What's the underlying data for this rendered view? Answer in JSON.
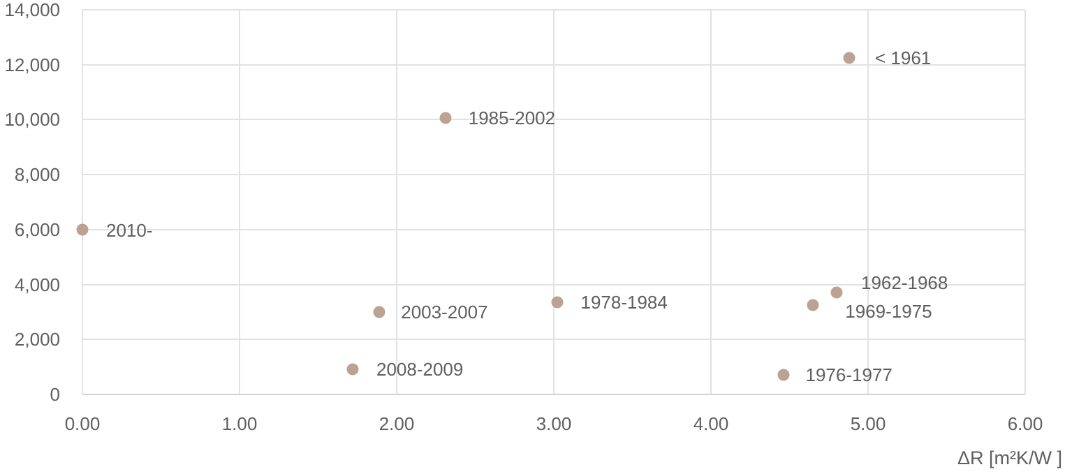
{
  "chart_data": {
    "type": "scatter",
    "title": "",
    "xlabel": "ΔR [m²K/W ]",
    "ylabel": "",
    "xlim": [
      0,
      6
    ],
    "ylim": [
      0,
      14000
    ],
    "grid": true,
    "legend": "none",
    "marker_color": "#bca292",
    "text_color": "#5f5f5f",
    "gridline_color": "#e2e2e2",
    "axis_line_color": "#d2d2d5",
    "x_ticks": [
      {
        "value": 0,
        "label": "0.00"
      },
      {
        "value": 1,
        "label": "1.00"
      },
      {
        "value": 2,
        "label": "2.00"
      },
      {
        "value": 3,
        "label": "3.00"
      },
      {
        "value": 4,
        "label": "4.00"
      },
      {
        "value": 5,
        "label": "5.00"
      },
      {
        "value": 6,
        "label": "6.00"
      }
    ],
    "y_ticks": [
      {
        "value": 0,
        "label": "0"
      },
      {
        "value": 2000,
        "label": "2,000"
      },
      {
        "value": 4000,
        "label": "4,000"
      },
      {
        "value": 6000,
        "label": "6,000"
      },
      {
        "value": 8000,
        "label": "8,000"
      },
      {
        "value": 10000,
        "label": "10,000"
      },
      {
        "value": 12000,
        "label": "12,000"
      },
      {
        "value": 14000,
        "label": "14,000"
      }
    ],
    "points": [
      {
        "label": "< 1961",
        "x": 4.88,
        "y": 12250,
        "label_offset": [
          37,
          0
        ]
      },
      {
        "label": "1985-2002",
        "x": 2.31,
        "y": 10050,
        "label_offset": [
          33,
          0
        ]
      },
      {
        "label": "2010-",
        "x": 0.0,
        "y": 6000,
        "label_offset": [
          34,
          1
        ]
      },
      {
        "label": "1962-1968",
        "x": 4.8,
        "y": 3700,
        "label_offset": [
          35,
          -14
        ]
      },
      {
        "label": "1969-1975",
        "x": 4.65,
        "y": 3250,
        "label_offset": [
          46,
          9
        ]
      },
      {
        "label": "1978-1984",
        "x": 3.02,
        "y": 3350,
        "label_offset": [
          34,
          0
        ]
      },
      {
        "label": "2003-2007",
        "x": 1.89,
        "y": 3000,
        "label_offset": [
          31,
          0
        ]
      },
      {
        "label": "2008-2009",
        "x": 1.72,
        "y": 925,
        "label_offset": [
          34,
          0
        ]
      },
      {
        "label": "1976-1977",
        "x": 4.46,
        "y": 700,
        "label_offset": [
          32,
          0
        ]
      }
    ]
  }
}
